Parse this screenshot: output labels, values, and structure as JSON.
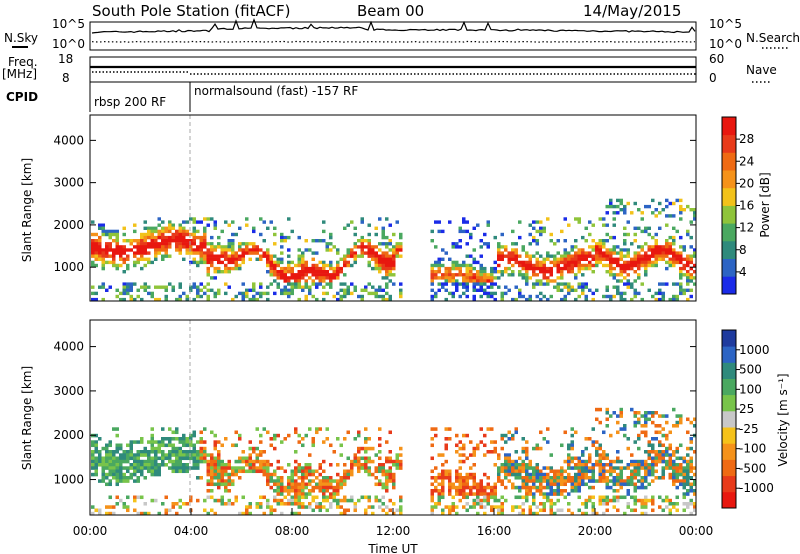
{
  "header": {
    "station": "South Pole Station (fitACF)",
    "beam": "Beam 00",
    "date": "14/May/2015"
  },
  "side_labels": {
    "nsky": "N.Sky",
    "freq": "Freq.",
    "freq_unit": "[MHz]",
    "cpid": "CPID",
    "nsearch": "N.Search",
    "nave": "Nave"
  },
  "cpid_segments": [
    {
      "label": "rbsp 200 RF"
    },
    {
      "label": "normalsound (fast) -157 RF"
    }
  ],
  "chart_data": [
    {
      "type": "line",
      "title": "N.Sky / N.Search",
      "yticks_left": [
        "10^5",
        "10^0"
      ],
      "yticks_right": [
        "10^5",
        "10^0"
      ],
      "legend": [
        "N.Sky",
        "N.Search"
      ]
    },
    {
      "type": "line",
      "title": "Freq. / Nave",
      "yticks_left": [
        "18",
        "8"
      ],
      "yticks_right": [
        "60",
        "0"
      ],
      "legend": [
        "Freq. [MHz]",
        "Nave"
      ]
    },
    {
      "type": "heatmap",
      "ylabel": "Slant Range [km]",
      "xlim": [
        0,
        24
      ],
      "ylim": [
        200,
        4600
      ],
      "yticks": [
        1000,
        2000,
        3000,
        4000
      ],
      "colorbar": {
        "label": "Power [dB]",
        "ticks": [
          "4",
          "8",
          "12",
          "16",
          "20",
          "24",
          "28"
        ],
        "colors": [
          "#1a2be8",
          "#2c64c4",
          "#2f8a7c",
          "#4aa860",
          "#8fc43a",
          "#f2c21a",
          "#f5921a",
          "#ef6a13",
          "#e83a1a",
          "#e8170f"
        ],
        "range": [
          0,
          31
        ]
      }
    },
    {
      "type": "heatmap",
      "ylabel": "Slant Range [km]",
      "xlabel": "Time UT",
      "xlim": [
        0,
        24
      ],
      "ylim": [
        200,
        4600
      ],
      "yticks": [
        1000,
        2000,
        3000,
        4000
      ],
      "xticks": [
        "00:00",
        "04:00",
        "08:00",
        "12:00",
        "16:00",
        "20:00",
        "00:00"
      ],
      "colorbar": {
        "label": "Velocity [m s⁻¹]",
        "ticks": [
          "1000",
          "500",
          "100",
          "25",
          "-25",
          "-100",
          "-500",
          "-1000"
        ],
        "colors": [
          "#1e3a9e",
          "#2c64c4",
          "#2f8a7c",
          "#4aa860",
          "#78c44a",
          "#c8c8c8",
          "#f5c21a",
          "#f5921a",
          "#ef6a13",
          "#e83a1a",
          "#e8170f"
        ]
      }
    }
  ]
}
